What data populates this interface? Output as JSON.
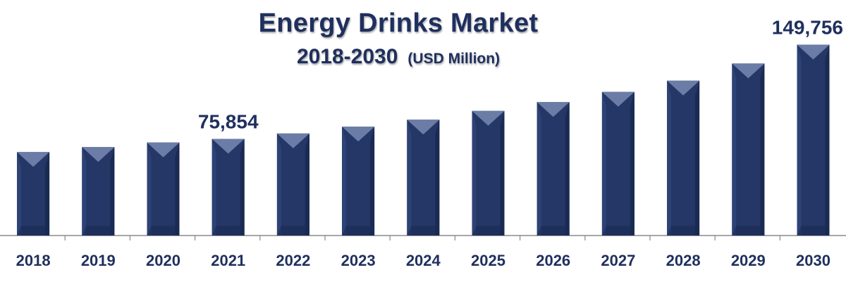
{
  "chart_data": {
    "type": "bar",
    "title": "Energy Drinks Market",
    "subtitle": "2018-2030",
    "unit_label": "(USD Million)",
    "categories": [
      "2018",
      "2019",
      "2020",
      "2021",
      "2022",
      "2023",
      "2024",
      "2025",
      "2026",
      "2027",
      "2028",
      "2029",
      "2030"
    ],
    "values": [
      65500,
      69400,
      73000,
      75854,
      80100,
      85400,
      90900,
      97800,
      104700,
      112700,
      121500,
      135000,
      149756
    ],
    "data_labels": [
      {
        "category": "2021",
        "text": "75,854"
      },
      {
        "category": "2030",
        "text": "149,756"
      }
    ],
    "xlabel": "",
    "ylabel": "",
    "ylim": [
      0,
      160000
    ],
    "grid": false,
    "legend": "none",
    "colors": {
      "bar": "#243766",
      "bar_side": "#2d4275",
      "bar_shade": "#1a2a52",
      "bar_cap": "#6b7ca6",
      "axis": "#8a8a8a",
      "text": "#1f2f5e"
    }
  }
}
